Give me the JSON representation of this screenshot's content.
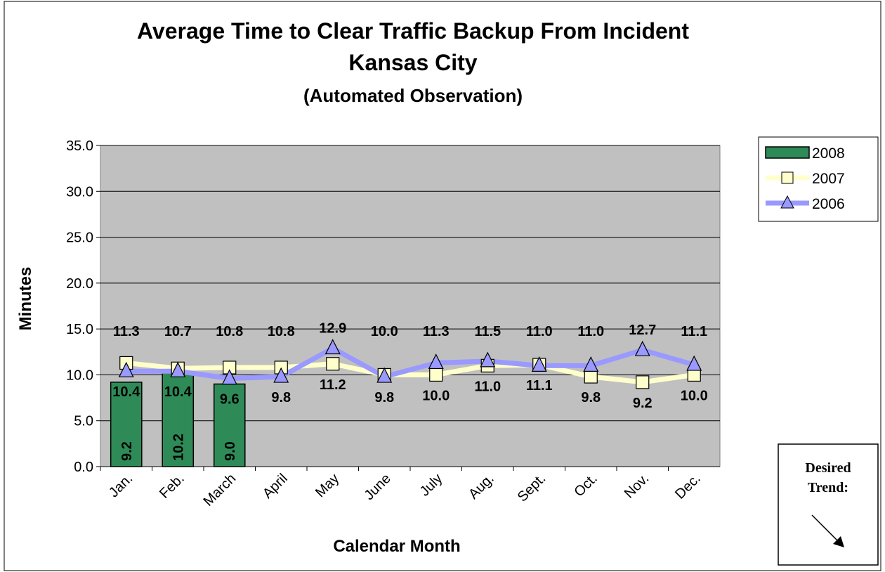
{
  "chart_data": {
    "type": "bar-line",
    "title": "Average Time to Clear Traffic Backup From Incident",
    "subtitle": "Kansas City",
    "subtitle2": "(Automated Observation)",
    "xlabel": "Calendar Month",
    "ylabel": "Minutes",
    "categories": [
      "Jan.",
      "Feb.",
      "March",
      "April",
      "May",
      "June",
      "July",
      "Aug.",
      "Sept.",
      "Oct.",
      "Nov.",
      "Dec."
    ],
    "series": [
      {
        "name": "2008",
        "type": "bar",
        "color": "#2e8b57",
        "values": [
          9.2,
          10.2,
          9.0,
          null,
          null,
          null,
          null,
          null,
          null,
          null,
          null,
          null
        ],
        "value_labels": [
          "9.2",
          "10.2",
          "9.0",
          null,
          null,
          null,
          null,
          null,
          null,
          null,
          null,
          null
        ]
      },
      {
        "name": "2007",
        "type": "line",
        "marker": "square",
        "color": "#ffffcc",
        "values": [
          11.3,
          10.7,
          10.8,
          10.8,
          11.2,
          10.0,
          10.0,
          11.0,
          11.1,
          9.8,
          9.2,
          10.0
        ],
        "value_labels": [
          "11.3",
          "10.7",
          "10.8",
          "10.8",
          "11.2",
          "10.0",
          "10.0",
          "11.0",
          "11.1",
          "9.8",
          "9.2",
          "10.0"
        ]
      },
      {
        "name": "2006",
        "type": "line",
        "marker": "triangle",
        "color": "#9999ff",
        "values": [
          10.4,
          10.4,
          9.6,
          9.8,
          12.9,
          9.8,
          11.3,
          11.5,
          11.0,
          11.0,
          12.7,
          11.1
        ],
        "value_labels": [
          "10.4",
          "10.4",
          "9.6",
          "9.8",
          "12.9",
          "9.8",
          "11.3",
          "11.5",
          "11.0",
          "11.0",
          "12.7",
          "11.1"
        ]
      }
    ],
    "ylim": [
      0,
      35
    ],
    "yticks": [
      {
        "value": 0,
        "label": "0.0"
      },
      {
        "value": 5,
        "label": "5.0"
      },
      {
        "value": 10,
        "label": "10.0"
      },
      {
        "value": 15,
        "label": "15.0"
      },
      {
        "value": 20,
        "label": "20.0"
      },
      {
        "value": 25,
        "label": "25.0"
      },
      {
        "value": 30,
        "label": "30.0"
      },
      {
        "value": 35,
        "label": "35.0"
      }
    ],
    "grid": true,
    "legend": "right",
    "annotation": [
      "Desired",
      "Trend:"
    ]
  }
}
